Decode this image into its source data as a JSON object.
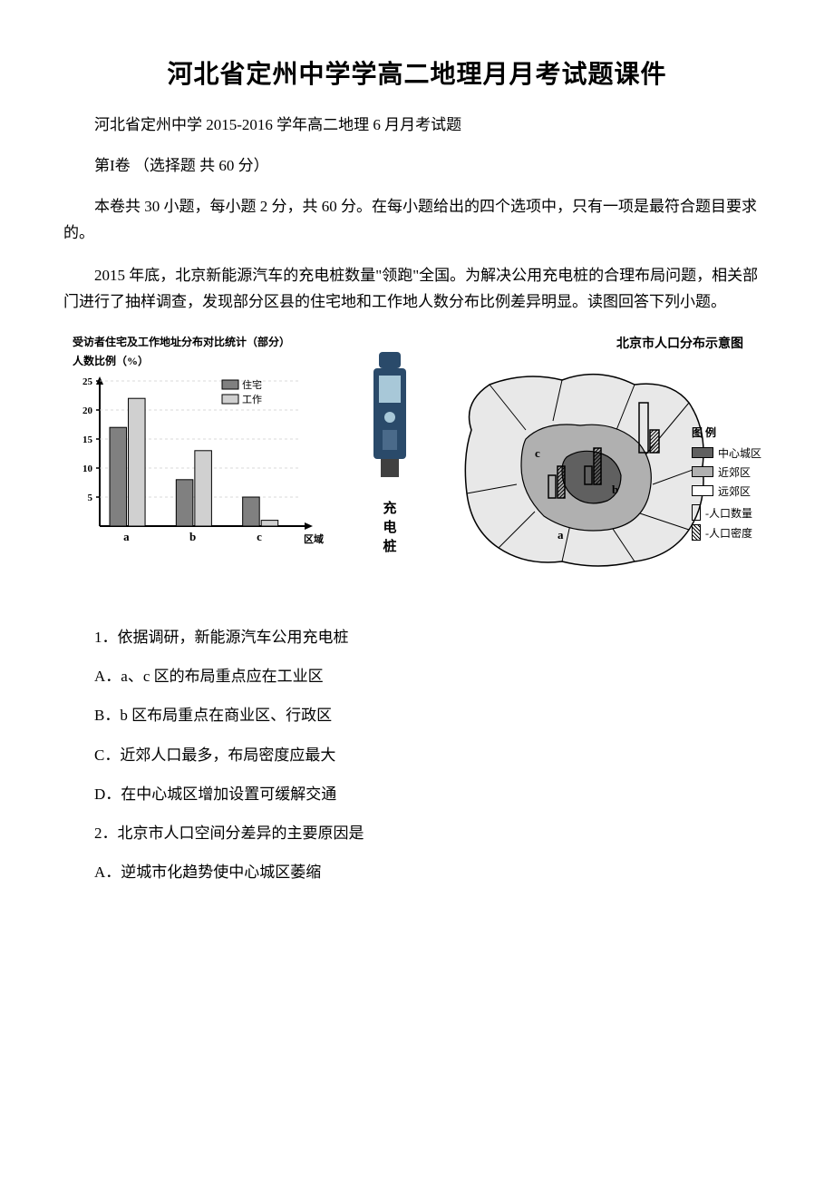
{
  "document": {
    "title": "河北省定州中学学高二地理月月考试题课件",
    "subtitle": "河北省定州中学 2015-2016 学年高二地理 6 月月考试题",
    "section_header": "第I卷 （选择题 共 60 分）",
    "instruction": "本卷共 30 小题，每小题 2 分，共 60 分。在每小题给出的四个选项中，只有一项是最符合题目要求的。",
    "context": "2015 年底，北京新能源汽车的充电桩数量\"领跑\"全国。为解决公用充电桩的合理布局问题，相关部门进行了抽样调查，发现部分区县的住宅地和工作地人数分布比例差异明显。读图回答下列小题。"
  },
  "bar_chart": {
    "type": "bar",
    "title": "受访者住宅及工作地址分布对比统计（部分）",
    "ylabel": "人数比例（%）",
    "xlabel": "区域",
    "categories": [
      "a",
      "b",
      "c"
    ],
    "series": [
      {
        "name": "住宅",
        "values": [
          17,
          8,
          5
        ],
        "color": "#808080"
      },
      {
        "name": "工作",
        "values": [
          22,
          13,
          1
        ],
        "color": "#d0d0d0"
      }
    ],
    "ylim": [
      0,
      25
    ],
    "ytick_step": 5,
    "yticks": [
      5,
      10,
      15,
      20,
      25
    ],
    "background_color": "#ffffff",
    "bar_width": 0.35,
    "axis_color": "#000000",
    "grid_color": "#cccccc",
    "title_fontsize": 12,
    "label_fontsize": 12,
    "tick_fontsize": 11,
    "legend_fontsize": 11,
    "legend_position": "top-right",
    "legend_labels": [
      "住宅",
      "工作"
    ]
  },
  "charger": {
    "label": "充电桩",
    "body_color": "#2a4a6a",
    "screen_color": "#a8c8d8",
    "width": 40,
    "height": 120
  },
  "map": {
    "title": "北京市人口分布示意图",
    "legend_title": "图 例",
    "legend_items": [
      {
        "label": "中心城区",
        "color": "#606060"
      },
      {
        "label": "近郊区",
        "color": "#b0b0b0"
      },
      {
        "label": "远郊区",
        "color": "#ffffff"
      }
    ],
    "symbol_items": [
      {
        "label": "人口数量",
        "symbol": "bar-outline"
      },
      {
        "label": "人口密度",
        "symbol": "bar-hatched"
      }
    ],
    "region_labels": [
      "a",
      "b",
      "c"
    ],
    "outline_color": "#000000",
    "center_color": "#606060",
    "suburb_color": "#b0b0b0",
    "outer_color": "#e8e8e8"
  },
  "questions": {
    "q1": {
      "stem": "1．依据调研，新能源汽车公用充电桩",
      "options": {
        "A": "A．a、c 区的布局重点应在工业区",
        "B": "B．b 区布局重点在商业区、行政区",
        "C": "C．近郊人口最多，布局密度应最大",
        "D": "D．在中心城区增加设置可缓解交通"
      }
    },
    "q2": {
      "stem": "2．北京市人口空间分差异的主要原因是",
      "options": {
        "A": "A．逆城市化趋势使中心城区萎缩"
      }
    }
  }
}
